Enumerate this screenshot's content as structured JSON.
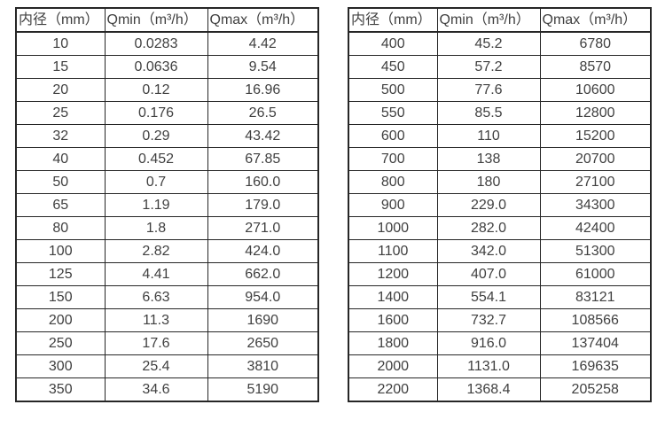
{
  "page": {
    "background_color": "#ffffff",
    "text_color": "#404040",
    "border_color": "#262626"
  },
  "tables": [
    {
      "name": "flow-table-small-diameters",
      "headers": [
        "内径（mm）",
        "Qmin（m³/h）",
        "Qmax（m³/h）"
      ],
      "rows": [
        [
          "10",
          "0.0283",
          "4.42"
        ],
        [
          "15",
          "0.0636",
          "9.54"
        ],
        [
          "20",
          "0.12",
          "16.96"
        ],
        [
          "25",
          "0.176",
          "26.5"
        ],
        [
          "32",
          "0.29",
          "43.42"
        ],
        [
          "40",
          "0.452",
          "67.85"
        ],
        [
          "50",
          "0.7",
          "160.0"
        ],
        [
          "65",
          "1.19",
          "179.0"
        ],
        [
          "80",
          "1.8",
          "271.0"
        ],
        [
          "100",
          "2.82",
          "424.0"
        ],
        [
          "125",
          "4.41",
          "662.0"
        ],
        [
          "150",
          "6.63",
          "954.0"
        ],
        [
          "200",
          "11.3",
          "1690"
        ],
        [
          "250",
          "17.6",
          "2650"
        ],
        [
          "300",
          "25.4",
          "3810"
        ],
        [
          "350",
          "34.6",
          "5190"
        ]
      ]
    },
    {
      "name": "flow-table-large-diameters",
      "headers": [
        "内径（mm）",
        "Qmin（m³/h）",
        "Qmax（m³/h）"
      ],
      "rows": [
        [
          "400",
          "45.2",
          "6780"
        ],
        [
          "450",
          "57.2",
          "8570"
        ],
        [
          "500",
          "77.6",
          "10600"
        ],
        [
          "550",
          "85.5",
          "12800"
        ],
        [
          "600",
          "110",
          "15200"
        ],
        [
          "700",
          "138",
          "20700"
        ],
        [
          "800",
          "180",
          "27100"
        ],
        [
          "900",
          "229.0",
          "34300"
        ],
        [
          "1000",
          "282.0",
          "42400"
        ],
        [
          "1100",
          "342.0",
          "51300"
        ],
        [
          "1200",
          "407.0",
          "61000"
        ],
        [
          "1400",
          "554.1",
          "83121"
        ],
        [
          "1600",
          "732.7",
          "108566"
        ],
        [
          "1800",
          "916.0",
          "137404"
        ],
        [
          "2000",
          "1131.0",
          "169635"
        ],
        [
          "2200",
          "1368.4",
          "205258"
        ]
      ]
    }
  ]
}
